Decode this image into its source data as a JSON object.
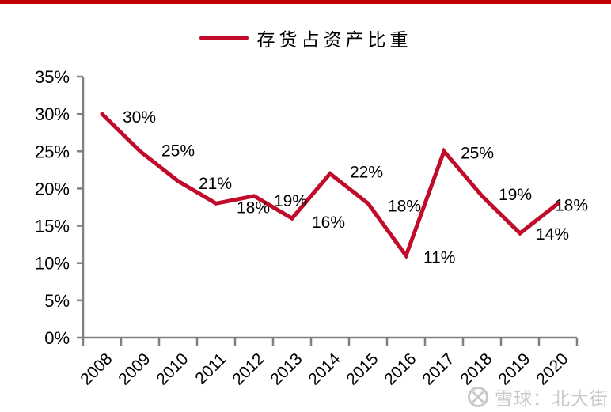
{
  "page": {
    "top_bar_color": "#c00000",
    "background": "#ffffff"
  },
  "legend": {
    "label": "存货占资产比重",
    "line_color": "#c10b2b"
  },
  "chart_data": {
    "type": "line",
    "title": "",
    "xlabel": "",
    "ylabel": "",
    "categories": [
      "2008",
      "2009",
      "2010",
      "2011",
      "2012",
      "2013",
      "2014",
      "2015",
      "2016",
      "2017",
      "2018",
      "2019",
      "2020"
    ],
    "series": [
      {
        "name": "存货占资产比重",
        "color": "#c10b2b",
        "values": [
          30,
          25,
          21,
          18,
          19,
          16,
          22,
          18,
          11,
          25,
          19,
          14,
          18
        ]
      }
    ],
    "data_labels": [
      "30%",
      "25%",
      "21%",
      "18%",
      "19%",
      "16%",
      "22%",
      "18%",
      "11%",
      "25%",
      "19%",
      "14%",
      "18%"
    ],
    "y_ticks": [
      "0%",
      "5%",
      "10%",
      "15%",
      "20%",
      "25%",
      "30%",
      "35%"
    ],
    "ylim": [
      0,
      35
    ],
    "y_tick_step": 5,
    "grid": false,
    "legend_position": "top",
    "axis_color": "#808080",
    "label_color": "#000000"
  },
  "watermark": {
    "text": "雪球：北大街",
    "color": "#c9c9c9"
  }
}
